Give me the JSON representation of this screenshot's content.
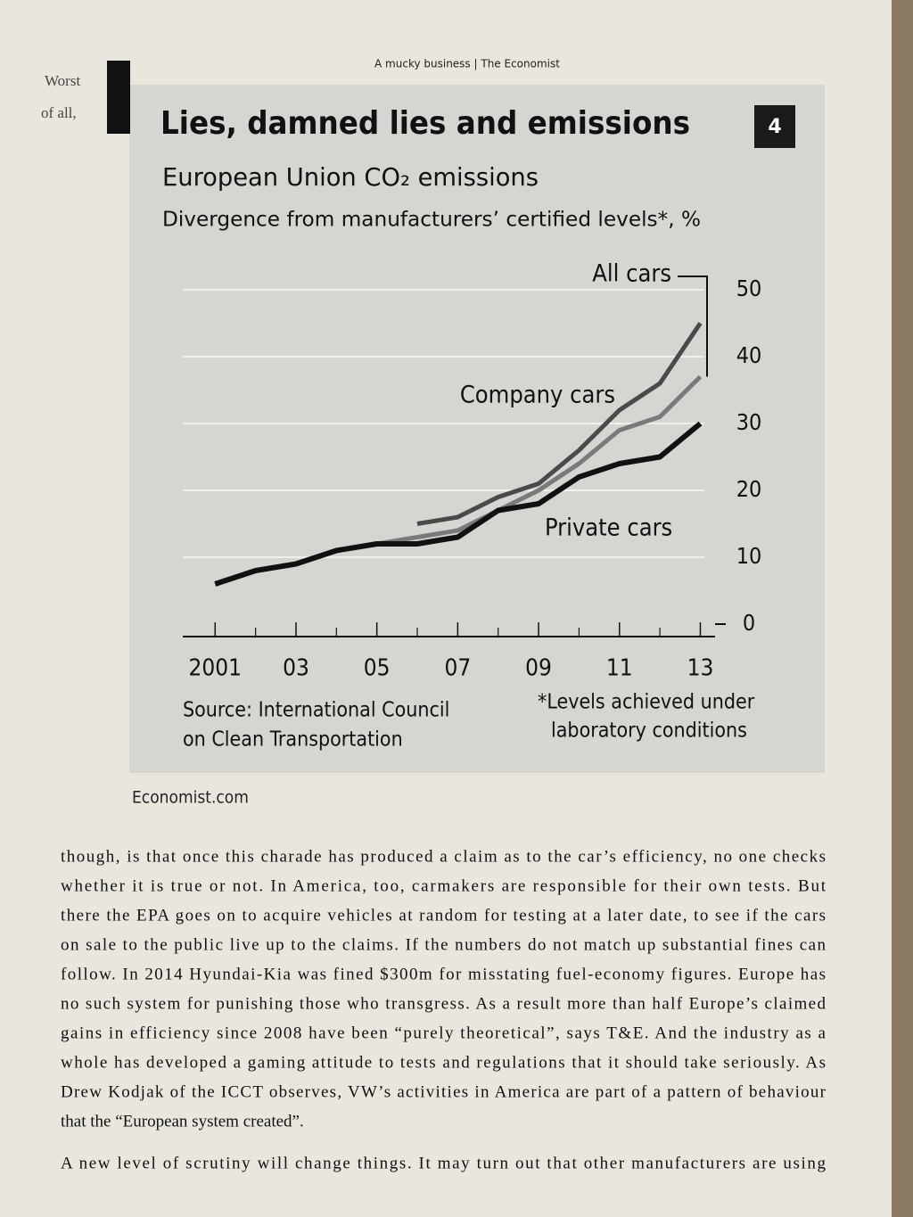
{
  "header": {
    "running_head": "A mucky business | The Economist"
  },
  "margin_note": {
    "lines": [
      "Worst",
      "of all,"
    ]
  },
  "figure": {
    "number": "4",
    "credit": "Economist.com"
  },
  "chart_data": {
    "type": "line",
    "title": "Lies, damned lies and emissions",
    "subtitle": "European Union CO₂ emissions",
    "y_label": "Divergence from manufacturers’ certified levels*, %",
    "source": [
      "Source: International Council",
      "on Clean Transportation"
    ],
    "footnote": [
      "*Levels achieved under",
      "laboratory conditions"
    ],
    "x": [
      2001,
      2002,
      2003,
      2004,
      2005,
      2006,
      2007,
      2008,
      2009,
      2010,
      2011,
      2012,
      2013
    ],
    "xlim": [
      2000.2,
      2013.1
    ],
    "xticks": [
      2001,
      {
        "value": 2003,
        "label": "03"
      },
      {
        "value": 2005,
        "label": "05"
      },
      {
        "value": 2007,
        "label": "07"
      },
      {
        "value": 2009,
        "label": "09"
      },
      {
        "value": 2011,
        "label": "11"
      },
      {
        "value": 2013,
        "label": "13"
      }
    ],
    "ylim": [
      0,
      55
    ],
    "yticks": [
      0,
      10,
      20,
      30,
      40,
      50
    ],
    "y_axis_side": "right",
    "grid": true,
    "series": [
      {
        "name": "All cars",
        "color": "#7a7a7a",
        "values": [
          6,
          8,
          9,
          11,
          12,
          13,
          14,
          17,
          20,
          24,
          29,
          31,
          37
        ]
      },
      {
        "name": "Company cars",
        "color": "#4a4a4a",
        "values": [
          null,
          null,
          null,
          null,
          null,
          15,
          16,
          19,
          21,
          26,
          32,
          36,
          45
        ]
      },
      {
        "name": "Private cars",
        "color": "#111111",
        "values": [
          6,
          8,
          9,
          11,
          12,
          12,
          13,
          17,
          18,
          22,
          24,
          25,
          30
        ]
      }
    ]
  },
  "body": {
    "paragraphs": [
      [
        "though, is that once this charade has produced a claim as to the car’s efficiency, no one checks",
        "whether it is true or not. In America, too, carmakers are responsible for their own tests. But",
        "there the EPA goes on to acquire vehicles at random for testing at a later date, to see if the cars",
        "on sale to the public live up to the claims. If the numbers do not match up substantial fines can",
        "follow. In 2014 Hyundai-Kia was fined $300m for misstating fuel-economy figures. Europe has",
        "no such system for punishing those who transgress. As a result more than half Europe’s claimed",
        "gains in efficiency since 2008 have been “purely theoretical”, says T&E. And the industry as a",
        "whole has developed a gaming attitude to tests and regulations that it should take seriously. As",
        "Drew Kodjak of the ICCT observes, VW’s activities in America are part of a pattern of behaviour",
        "that the “European system created”."
      ],
      [
        "A new level of scrutiny will change things. It may turn out that other manufacturers are using"
      ]
    ]
  }
}
